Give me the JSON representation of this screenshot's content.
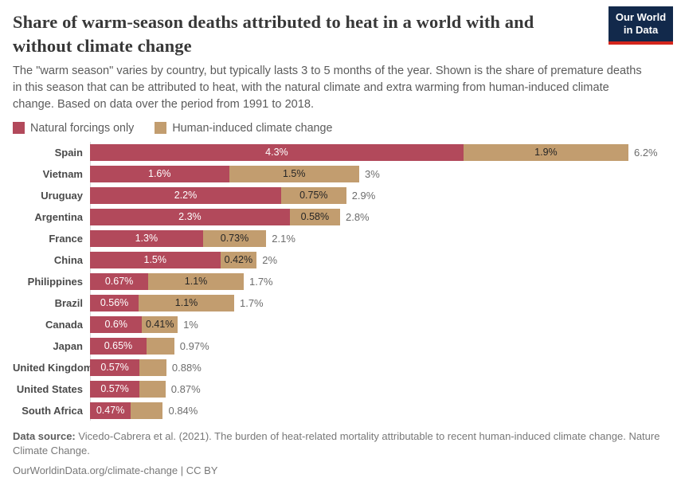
{
  "header": {
    "title": "Share of warm-season deaths attributed to heat in a world with and without climate change",
    "logo_line1": "Our World",
    "logo_line2": "in Data",
    "logo_bg": "#12294b",
    "logo_accent": "#d4261c"
  },
  "subtitle": "The \"warm season\" varies by country, but typically lasts 3 to 5 months of the year. Shown is the share of premature deaths in this season that can be attributed to heat, with the natural climate and extra warming from human-induced climate change. Based on data over the period from 1991 to 2018.",
  "legend": [
    {
      "label": "Natural forcings only",
      "color": "#b2495b"
    },
    {
      "label": "Human-induced climate change",
      "color": "#c29d6f"
    }
  ],
  "chart_data": {
    "type": "bar",
    "orientation": "horizontal",
    "stacked": true,
    "grid": false,
    "legend_position": "top-left",
    "xmax": 6.2,
    "categories": [
      "Spain",
      "Vietnam",
      "Uruguay",
      "Argentina",
      "France",
      "China",
      "Philippines",
      "Brazil",
      "Canada",
      "Japan",
      "United Kingdom",
      "United States",
      "South Africa"
    ],
    "series": [
      {
        "name": "Natural forcings only",
        "color": "#b2495b",
        "values": [
          4.3,
          1.6,
          2.2,
          2.3,
          1.3,
          1.5,
          0.67,
          0.56,
          0.6,
          0.65,
          0.57,
          0.57,
          0.47
        ],
        "labels": [
          "4.3%",
          "1.6%",
          "2.2%",
          "2.3%",
          "1.3%",
          "1.5%",
          "0.67%",
          "0.56%",
          "0.6%",
          "0.65%",
          "0.57%",
          "0.57%",
          "0.47%"
        ]
      },
      {
        "name": "Human-induced climate change",
        "color": "#c29d6f",
        "values": [
          1.9,
          1.5,
          0.75,
          0.58,
          0.73,
          0.42,
          1.1,
          1.1,
          0.41,
          0.32,
          0.31,
          0.3,
          0.37
        ],
        "labels": [
          "1.9%",
          "1.5%",
          "0.75%",
          "0.58%",
          "0.73%",
          "0.42%",
          "1.1%",
          "1.1%",
          "0.41%",
          "",
          "",
          "",
          ""
        ]
      }
    ],
    "totals": [
      "6.2%",
      "3%",
      "2.9%",
      "2.8%",
      "2.1%",
      "2%",
      "1.7%",
      "1.7%",
      "1%",
      "0.97%",
      "0.88%",
      "0.87%",
      "0.84%"
    ]
  },
  "footer": {
    "source_label": "Data source:",
    "source_text": " Vicedo-Cabrera et al. (2021). The burden of heat-related mortality attributable to recent human-induced climate change. Nature Climate Change.",
    "citation": "OurWorldinData.org/climate-change | CC BY"
  }
}
